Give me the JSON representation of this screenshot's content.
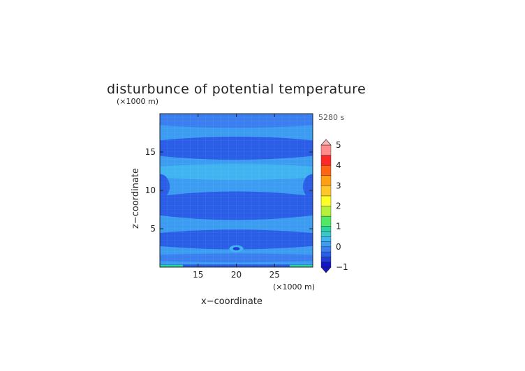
{
  "chart_data": {
    "type": "heatmap",
    "title": "disturbunce of potential temperature",
    "xlabel": "x−coordinate",
    "ylabel": "z−coordinate",
    "x_unit": "(×1000 m)",
    "y_unit": "(×1000 m)",
    "time_label": "5280 s",
    "xlim": [
      10,
      30
    ],
    "ylim": [
      0,
      20
    ],
    "x_ticks": [
      15,
      20,
      25
    ],
    "y_ticks": [
      5,
      10,
      15
    ],
    "colorbar": {
      "min": -1,
      "max": 5,
      "tick_values": [
        -1,
        0,
        1,
        2,
        3,
        4,
        5
      ],
      "levels": [
        {
          "from": -1.0,
          "to": -0.75,
          "color": "#1414c8"
        },
        {
          "from": -0.75,
          "to": -0.5,
          "color": "#1e3cd8"
        },
        {
          "from": -0.5,
          "to": -0.25,
          "color": "#2a5ee6"
        },
        {
          "from": -0.25,
          "to": 0.0,
          "color": "#3a7ef0"
        },
        {
          "from": 0.0,
          "to": 0.25,
          "color": "#3c9cf2"
        },
        {
          "from": 0.25,
          "to": 0.5,
          "color": "#40b4f0"
        },
        {
          "from": 0.5,
          "to": 0.75,
          "color": "#3cc8c8"
        },
        {
          "from": 0.75,
          "to": 1.0,
          "color": "#28d6a0"
        },
        {
          "from": 1.0,
          "to": 1.5,
          "color": "#50e864"
        },
        {
          "from": 1.5,
          "to": 2.0,
          "color": "#b4f03c"
        },
        {
          "from": 2.0,
          "to": 2.5,
          "color": "#ffff28"
        },
        {
          "from": 2.5,
          "to": 3.0,
          "color": "#ffc828"
        },
        {
          "from": 3.0,
          "to": 3.5,
          "color": "#ffa014"
        },
        {
          "from": 3.5,
          "to": 4.0,
          "color": "#ff6414"
        },
        {
          "from": 4.0,
          "to": 4.5,
          "color": "#ff2828"
        },
        {
          "from": 4.5,
          "to": 5.0,
          "color": "#ff8c8c"
        }
      ],
      "over_color": "#ffb4b4",
      "under_color": "#1414c8"
    },
    "field": {
      "background_level": 0.1,
      "regions": [
        {
          "shape": "band",
          "z_center": 19.2,
          "half_width": 0.9,
          "level": -0.1,
          "label": "top band"
        },
        {
          "shape": "band",
          "z_center": 15.5,
          "half_width": 1.3,
          "level": -0.3,
          "label": "upper trough"
        },
        {
          "shape": "band",
          "z_center": 12.4,
          "half_width": 0.9,
          "level": 0.3,
          "label": "upper crest"
        },
        {
          "shape": "band",
          "z_center": 8.0,
          "half_width": 1.6,
          "level": -0.3,
          "label": "middle trough"
        },
        {
          "shape": "band",
          "z_center": 3.6,
          "half_width": 1.1,
          "level": -0.3,
          "label": "lower trough"
        },
        {
          "shape": "band",
          "z_center": 1.2,
          "half_width": 0.5,
          "level": -0.1,
          "label": "near surface"
        }
      ],
      "surface_level": 0.8,
      "center_feature": {
        "x": 20.0,
        "z": 2.4,
        "level": 0.3
      }
    }
  }
}
